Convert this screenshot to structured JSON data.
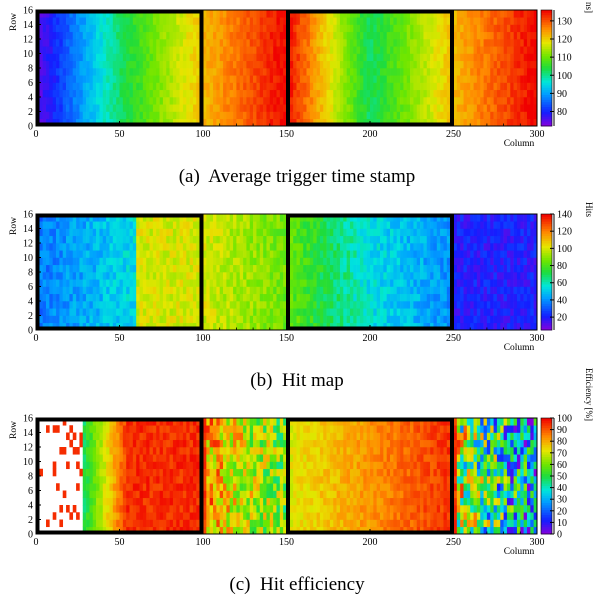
{
  "chart_data": [
    {
      "type": "heatmap",
      "panel_tag": "(a)",
      "caption": "Average trigger time stamp",
      "xlabel": "Column",
      "ylabel": "Row",
      "colorbar_label": "Time stamp [25 ns]",
      "x_range": [
        0,
        300
      ],
      "y_range": [
        0,
        16
      ],
      "x_ticks": [
        "0",
        "50",
        "100",
        "150",
        "200",
        "250",
        "300"
      ],
      "y_ticks": [
        "0",
        "2",
        "4",
        "6",
        "8",
        "10",
        "12",
        "14",
        "16"
      ],
      "z_range": [
        72,
        136
      ],
      "z_ticks": [
        "80",
        "90",
        "100",
        "110",
        "120",
        "130"
      ],
      "highlighted_regions_columns": [
        [
          0,
          100
        ],
        [
          150,
          250
        ]
      ],
      "profile_columns": [
        0,
        50,
        100,
        150,
        200,
        250,
        300
      ],
      "profile_values": [
        74,
        102,
        122,
        136,
        102,
        122,
        136
      ]
    },
    {
      "type": "heatmap",
      "panel_tag": "(b)",
      "caption": "Hit map",
      "xlabel": "Column",
      "ylabel": "Row",
      "colorbar_label": "Hits",
      "x_range": [
        0,
        300
      ],
      "y_range": [
        0,
        16
      ],
      "x_ticks": [
        "0",
        "50",
        "100",
        "150",
        "200",
        "250",
        "300"
      ],
      "y_ticks": [
        "0",
        "2",
        "4",
        "6",
        "8",
        "10",
        "12",
        "14",
        "16"
      ],
      "z_range": [
        5,
        140
      ],
      "z_ticks": [
        "20",
        "40",
        "60",
        "80",
        "100",
        "120",
        "140"
      ],
      "highlighted_regions_columns": [
        [
          0,
          100
        ],
        [
          150,
          250
        ]
      ],
      "profile_columns": [
        0,
        60,
        61,
        100,
        150,
        200,
        250,
        251,
        300
      ],
      "profile_values": [
        35,
        55,
        100,
        100,
        85,
        55,
        40,
        20,
        20
      ]
    },
    {
      "type": "heatmap",
      "panel_tag": "(c)",
      "caption": "Hit efficiency",
      "xlabel": "Column",
      "ylabel": "Row",
      "colorbar_label": "Efficiency [%]",
      "x_range": [
        0,
        300
      ],
      "y_range": [
        0,
        16
      ],
      "x_ticks": [
        "0",
        "50",
        "100",
        "150",
        "200",
        "250",
        "300"
      ],
      "y_ticks": [
        "0",
        "2",
        "4",
        "6",
        "8",
        "10",
        "12",
        "14",
        "16"
      ],
      "z_range": [
        0,
        100
      ],
      "z_ticks": [
        "0",
        "10",
        "20",
        "30",
        "40",
        "50",
        "60",
        "70",
        "80",
        "90",
        "100"
      ],
      "highlighted_regions_columns": [
        [
          0,
          100
        ],
        [
          150,
          250
        ]
      ],
      "profile_columns": [
        0,
        55,
        100,
        150,
        250,
        300
      ],
      "profile_values": [
        0,
        99,
        99,
        75,
        99,
        60
      ]
    }
  ]
}
